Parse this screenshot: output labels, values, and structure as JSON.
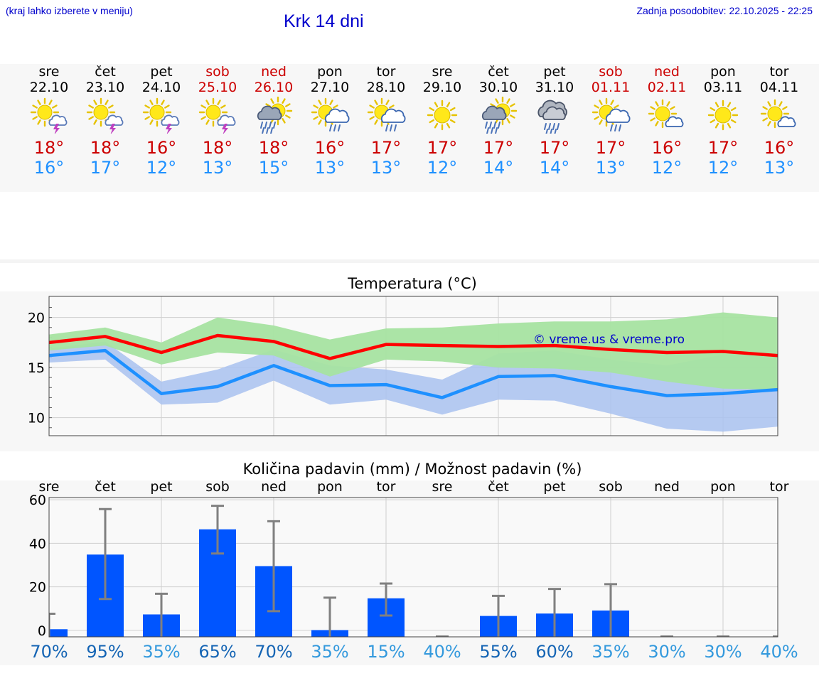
{
  "header": {
    "hint": "(kraj lahko izberete v meniju)",
    "place": "Krk 14 dni",
    "updated": "Zadnja posodobitev: 22.10.2025 - 22:25"
  },
  "days": [
    {
      "name": "sre",
      "date": "22.10",
      "icon": "sun-cloud-thunder-icon",
      "max": "18°",
      "min": "16°",
      "weekend": false
    },
    {
      "name": "čet",
      "date": "23.10",
      "icon": "sun-cloud-thunder-icon",
      "max": "18°",
      "min": "17°",
      "weekend": false
    },
    {
      "name": "pet",
      "date": "24.10",
      "icon": "sun-cloud-thunder-icon",
      "max": "16°",
      "min": "12°",
      "weekend": false
    },
    {
      "name": "sob",
      "date": "25.10",
      "icon": "sun-cloud-thunder-icon",
      "max": "18°",
      "min": "13°",
      "weekend": true
    },
    {
      "name": "ned",
      "date": "26.10",
      "icon": "cloud-sun-heavy-rain-icon",
      "max": "18°",
      "min": "15°",
      "weekend": true
    },
    {
      "name": "pon",
      "date": "27.10",
      "icon": "sun-cloud-rain-icon",
      "max": "16°",
      "min": "13°",
      "weekend": false
    },
    {
      "name": "tor",
      "date": "28.10",
      "icon": "sun-cloud-rain-icon",
      "max": "17°",
      "min": "13°",
      "weekend": false
    },
    {
      "name": "sre",
      "date": "29.10",
      "icon": "sun-icon",
      "max": "17°",
      "min": "12°",
      "weekend": false
    },
    {
      "name": "čet",
      "date": "30.10",
      "icon": "cloud-sun-heavy-rain-icon",
      "max": "17°",
      "min": "14°",
      "weekend": false
    },
    {
      "name": "pet",
      "date": "31.10",
      "icon": "dark-cloud-rain-icon",
      "max": "17°",
      "min": "14°",
      "weekend": false
    },
    {
      "name": "sob",
      "date": "01.11",
      "icon": "sun-cloud-rain-icon",
      "max": "17°",
      "min": "13°",
      "weekend": true
    },
    {
      "name": "ned",
      "date": "02.11",
      "icon": "sun-small-cloud-icon",
      "max": "16°",
      "min": "12°",
      "weekend": true
    },
    {
      "name": "pon",
      "date": "03.11",
      "icon": "sun-icon",
      "max": "17°",
      "min": "12°",
      "weekend": false
    },
    {
      "name": "tor",
      "date": "04.11",
      "icon": "sun-small-cloud-icon",
      "max": "16°",
      "min": "13°",
      "weekend": false
    }
  ],
  "colors": {
    "max_line": "#ff0000",
    "min_line": "#1e90ff",
    "max_band": "#a6e3a1",
    "min_band": "#a9c2f0",
    "overlap_band": "#7cc4a6",
    "bar": "#0055ff",
    "error": "#808080",
    "prob_dark": "#1464b4",
    "prob_light": "#3399dd",
    "weekend": "#cc0000"
  },
  "chart_data": [
    {
      "type": "line",
      "title": "Temperatura (°C)",
      "watermark": "© vreme.us & vreme.pro",
      "ylim": [
        8.2,
        22.1
      ],
      "yticks": [
        10,
        15,
        20
      ],
      "grid": true,
      "x": [
        "22.10",
        "23.10",
        "24.10",
        "25.10",
        "26.10",
        "27.10",
        "28.10",
        "29.10",
        "30.10",
        "31.10",
        "01.11",
        "02.11",
        "03.11",
        "04.11"
      ],
      "series": [
        {
          "role": "max",
          "values": [
            17.5,
            18.1,
            16.5,
            18.2,
            17.6,
            15.9,
            17.3,
            17.2,
            17.1,
            17.2,
            16.8,
            16.5,
            16.6,
            16.2
          ],
          "band_low": [
            16.7,
            17.2,
            15.3,
            16.5,
            16.2,
            14.1,
            15.8,
            15.6,
            15.0,
            14.9,
            14.5,
            13.6,
            12.9,
            12.8
          ],
          "band_high": [
            18.3,
            19.0,
            17.5,
            20.0,
            19.2,
            17.8,
            18.9,
            19.0,
            19.4,
            19.6,
            19.6,
            19.8,
            20.5,
            20.0
          ]
        },
        {
          "role": "min",
          "values": [
            16.2,
            16.7,
            12.4,
            13.1,
            15.2,
            13.2,
            13.3,
            12.0,
            14.1,
            14.2,
            13.1,
            12.2,
            12.4,
            12.8
          ],
          "band_low": [
            15.5,
            15.8,
            11.3,
            11.5,
            13.7,
            11.3,
            11.8,
            10.3,
            11.8,
            11.7,
            10.4,
            8.9,
            8.6,
            9.1
          ],
          "band_high": [
            16.9,
            17.6,
            13.6,
            14.8,
            16.8,
            15.2,
            14.8,
            13.8,
            16.4,
            16.7,
            15.8,
            15.2,
            16.3,
            16.5
          ]
        }
      ]
    },
    {
      "type": "bar",
      "title": "Količina padavin (mm) / Možnost padavin (%)",
      "ylim": [
        -3,
        61
      ],
      "yticks": [
        0,
        20,
        40,
        60
      ],
      "grid": true,
      "categories": [
        "sre",
        "čet",
        "pet",
        "sob",
        "ned",
        "pon",
        "tor",
        "sre",
        "čet",
        "pet",
        "sob",
        "ned",
        "pon",
        "tor"
      ],
      "values": [
        0.5,
        34.8,
        7.3,
        46.4,
        29.5,
        0.1,
        14.7,
        0,
        6.6,
        7.7,
        9.1,
        0,
        0,
        0
      ],
      "err_low": [
        0,
        14.4,
        0,
        35.3,
        8.8,
        0,
        6.8,
        0,
        0,
        0,
        0,
        0,
        0,
        0
      ],
      "err_high": [
        7.6,
        55.7,
        16.8,
        57.2,
        50.1,
        15,
        21.5,
        0,
        15.8,
        19,
        21.2,
        0,
        0,
        0
      ],
      "probability": [
        "70%",
        "95%",
        "35%",
        "65%",
        "70%",
        "35%",
        "15%",
        "40%",
        "55%",
        "60%",
        "35%",
        "30%",
        "30%",
        "40%"
      ],
      "probability_emphasis": [
        true,
        true,
        false,
        true,
        true,
        false,
        false,
        false,
        true,
        true,
        false,
        false,
        false,
        false
      ]
    }
  ]
}
